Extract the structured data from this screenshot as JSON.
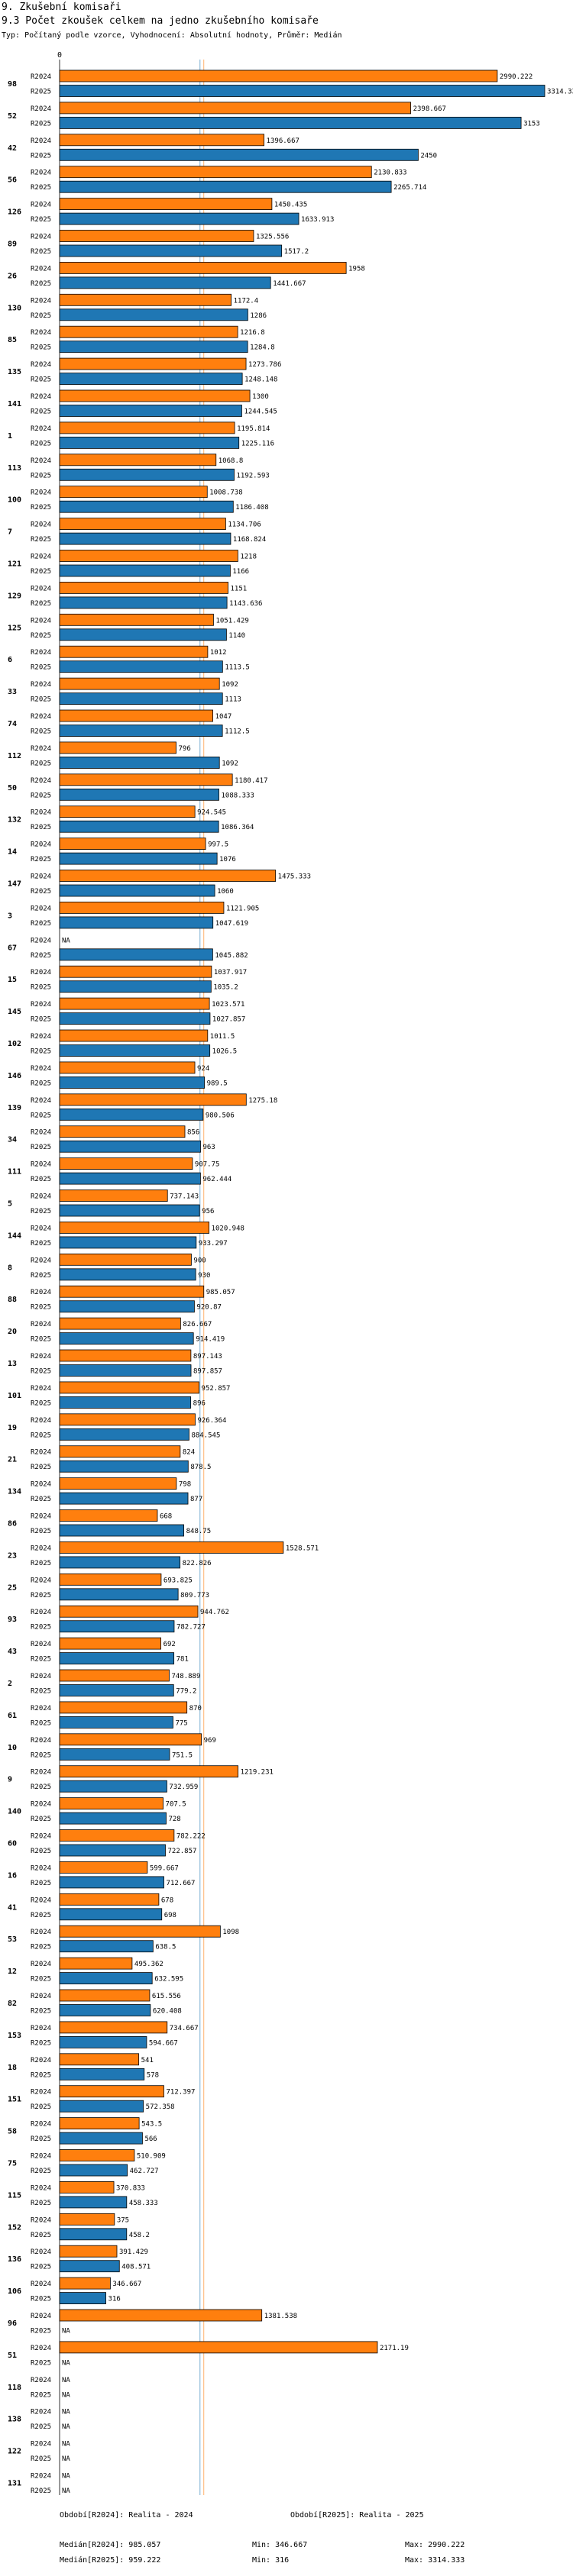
{
  "header": {
    "section_title": "9. Zkušební komisaři",
    "chart_title": "9.3 Počet zkoušek celkem na jedno zkušebního komisaře",
    "subtitle": "Typ: Počítaný podle vzorce, Vyhodnocení: Absolutní hodnoty, Průměr: Medián"
  },
  "colors": {
    "r2024": "#ff7f0e",
    "r2025": "#1f77b4"
  },
  "chart_data": {
    "type": "bar",
    "orientation": "horizontal",
    "title": "9.3 Počet zkoušek celkem na jedno zkušebního komisaře",
    "x_tick_labels": [
      "0"
    ],
    "xlim": [
      0,
      3314.333
    ],
    "series_names": [
      "R2024",
      "R2025"
    ],
    "na_label": "NA",
    "median_lines": [
      985.057,
      959.222
    ],
    "categories": [
      "98",
      "52",
      "42",
      "56",
      "126",
      "89",
      "26",
      "130",
      "85",
      "135",
      "141",
      "1",
      "113",
      "100",
      "7",
      "121",
      "129",
      "125",
      "6",
      "33",
      "74",
      "112",
      "50",
      "132",
      "14",
      "147",
      "3",
      "67",
      "15",
      "145",
      "102",
      "146",
      "139",
      "34",
      "111",
      "5",
      "144",
      "8",
      "88",
      "20",
      "13",
      "101",
      "19",
      "21",
      "134",
      "86",
      "23",
      "25",
      "93",
      "43",
      "2",
      "61",
      "10",
      "9",
      "140",
      "60",
      "16",
      "41",
      "53",
      "12",
      "82",
      "153",
      "18",
      "151",
      "58",
      "75",
      "115",
      "152",
      "136",
      "106",
      "96",
      "51",
      "118",
      "138",
      "122",
      "131"
    ],
    "series": [
      {
        "name": "R2024",
        "values": [
          2990.222,
          2398.667,
          1396.667,
          2130.833,
          1450.435,
          1325.556,
          1958,
          1172.4,
          1216.8,
          1273.786,
          1300,
          1195.814,
          1068.8,
          1008.738,
          1134.706,
          1218,
          1151,
          1051.429,
          1012,
          1092,
          1047,
          796,
          1180.417,
          924.545,
          997.5,
          1475.333,
          1121.905,
          null,
          1037.917,
          1023.571,
          1011.5,
          924,
          1275.18,
          856,
          907.75,
          737.143,
          1020.948,
          900,
          985.057,
          826.667,
          897.143,
          952.857,
          926.364,
          824,
          798,
          668,
          1528.571,
          693.825,
          944.762,
          692,
          748.889,
          870,
          969,
          1219.231,
          707.5,
          782.222,
          599.667,
          678,
          1098,
          495.362,
          615.556,
          734.667,
          541,
          712.397,
          543.5,
          510.909,
          370.833,
          375,
          391.429,
          346.667,
          1381.538,
          2171.19,
          null,
          null,
          null,
          null
        ]
      },
      {
        "name": "R2025",
        "values": [
          3314.333,
          3153,
          2450,
          2265.714,
          1633.913,
          1517.2,
          1441.667,
          1286,
          1284.8,
          1248.148,
          1244.545,
          1225.116,
          1192.593,
          1186.408,
          1168.824,
          1166,
          1143.636,
          1140,
          1113.5,
          1113,
          1112.5,
          1092,
          1088.333,
          1086.364,
          1076,
          1060,
          1047.619,
          1045.882,
          1035.2,
          1027.857,
          1026.5,
          989.5,
          980.506,
          963,
          962.444,
          956,
          933.297,
          930,
          920.87,
          914.419,
          897.857,
          896,
          884.545,
          878.5,
          877,
          848.75,
          822.826,
          809.773,
          782.727,
          781,
          779.2,
          775,
          751.5,
          732.959,
          728,
          722.857,
          712.667,
          698,
          638.5,
          632.595,
          620.408,
          594.667,
          578,
          572.358,
          566,
          462.727,
          458.333,
          458.2,
          408.571,
          316,
          null,
          null,
          null,
          null,
          null,
          null
        ]
      }
    ]
  },
  "footer": {
    "period_2024": "Období[R2024]: Realita - 2024",
    "period_2025": "Období[R2025]: Realita - 2025",
    "median_2024": "Medián[R2024]: 985.057",
    "median_2025": "Medián[R2025]: 959.222",
    "min_2024": "Min: 346.667",
    "min_2025": "Min: 316",
    "max_2024": "Max: 2990.222",
    "max_2025": "Max: 3314.333"
  }
}
